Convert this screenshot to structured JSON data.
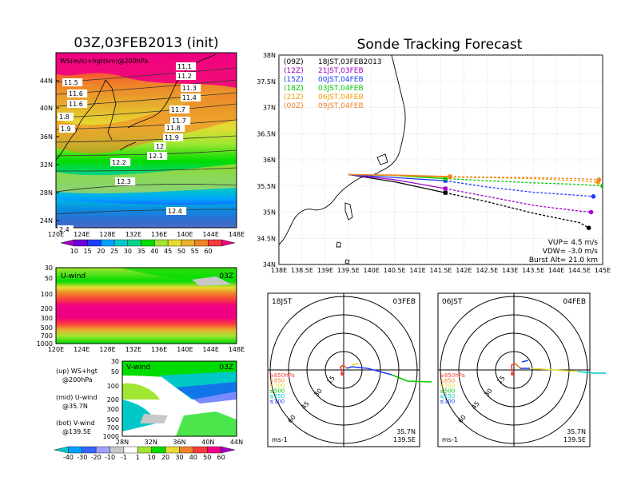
{
  "left_panel": {
    "title": "03Z,03FEB2013 (init)",
    "map_label": "WS(m/s)+hgt(km)@200hPa",
    "map_lat_labels": [
      "44N",
      "40N",
      "36N",
      "32N",
      "28N",
      "24N"
    ],
    "map_lon_labels": [
      "120E",
      "124E",
      "128E",
      "132E",
      "136E",
      "140E",
      "144E",
      "148E"
    ],
    "contour_labels": [
      "11.1",
      "11.2",
      "11.3",
      "11.4",
      "11.5",
      "11.6",
      "11.6",
      "11.7",
      "11.7",
      "11.8",
      "11.9",
      "12",
      "12.1",
      "12.2",
      "12.3",
      "12.4",
      "1.8",
      "1.9",
      "2.4"
    ],
    "ws_colorbar": [
      "10",
      "15",
      "20",
      "25",
      "30",
      "35",
      "40",
      "45",
      "50",
      "55",
      "60"
    ],
    "uwind": {
      "label": "U-wind",
      "time": "03Z",
      "levels": [
        "30",
        "50",
        "100",
        "200",
        "300",
        "500",
        "700",
        "1000"
      ],
      "lon_labels": [
        "120E",
        "124E",
        "128E",
        "132E",
        "136E",
        "140E",
        "144E",
        "148E"
      ]
    },
    "vwind": {
      "label": "V-wind",
      "time": "03Z",
      "levels": [
        "30",
        "50",
        "100",
        "200",
        "300",
        "500",
        "700",
        "1000"
      ],
      "lat_labels": [
        "28N",
        "32N",
        "36N",
        "40N",
        "44N"
      ]
    },
    "legend_text": [
      "(up) WS+hgt",
      "@200hPa",
      "(mid) U-wind",
      "@35.7N",
      "(bot) V-wind",
      "@139.5E"
    ],
    "wind_colorbar": [
      "-40",
      "-30",
      "-20",
      "-10",
      "-1",
      "1",
      "10",
      "20",
      "30",
      "40",
      "50",
      "60"
    ]
  },
  "colors": {
    "ws_scale": [
      "#a000c8",
      "#6e00dc",
      "#1e3cff",
      "#00a0ff",
      "#00c8c8",
      "#00d28c",
      "#00dc00",
      "#a0e632",
      "#e6dc32",
      "#e6af2d",
      "#f08228",
      "#fa3c3c",
      "#f00082"
    ],
    "wind_scale": [
      "#00c8c8",
      "#00a0ff",
      "#3c64ff",
      "#a0a0ff",
      "#c8c8c8",
      "#ffffff",
      "#a0e632",
      "#00dc00",
      "#e6dc32",
      "#f08228",
      "#fa3c3c",
      "#f00082"
    ],
    "track_09": "#000000",
    "track_21": "#a000c8",
    "track_00": "#1e3cff",
    "track_03": "#00c800",
    "track_06": "#f0a000",
    "track_09b": "#f08228"
  },
  "tracking": {
    "title": "Sonde Tracking Forecast",
    "legend": [
      {
        "utc": "(09Z)",
        "jst": "18JST,03FEB2013",
        "color": "#000000"
      },
      {
        "utc": "(12Z)",
        "jst": "21JST,03FEB",
        "color": "#a000c8"
      },
      {
        "utc": "(15Z)",
        "jst": "00JST,04FEB",
        "color": "#1e3cff"
      },
      {
        "utc": "(18Z)",
        "jst": "03JST,04FEB",
        "color": "#00c800"
      },
      {
        "utc": "(21Z)",
        "jst": "06JST,04FEB",
        "color": "#f0a000"
      },
      {
        "utc": "(00Z)",
        "jst": "09JST,04FEB",
        "color": "#f08228"
      }
    ],
    "params": [
      "VUP= 4.5 m/s",
      "VDW= -3.0 m/s",
      "Burst Alt= 21.0 km"
    ],
    "lat_labels": [
      "38N",
      "37.5N",
      "37N",
      "36.5N",
      "36N",
      "35.5N",
      "35N",
      "34.5N",
      "34N"
    ],
    "lon_labels": [
      "138E",
      "138.5E",
      "139E",
      "139.5E",
      "140E",
      "140.5E",
      "141E",
      "141.5E",
      "142E",
      "142.5E",
      "143E",
      "143.5E",
      "144E",
      "144.5E",
      "145E"
    ]
  },
  "chart_data": {
    "type": "line",
    "title": "Sonde Tracking Forecast",
    "xlim": [
      138,
      145
    ],
    "ylim": [
      34,
      38
    ],
    "series": [
      {
        "name": "18JST,03FEB2013",
        "solid_end": [
          141.6,
          35.37
        ],
        "x": [
          139.5,
          140.5,
          141.6,
          142.5,
          143.5,
          144.5,
          144.7
        ],
        "y": [
          35.72,
          35.58,
          35.37,
          35.2,
          34.98,
          34.8,
          34.7
        ]
      },
      {
        "name": "21JST,03FEB",
        "solid_end": [
          141.6,
          35.45
        ],
        "x": [
          139.5,
          140.5,
          141.6,
          142.5,
          143.5,
          144.5,
          144.75
        ],
        "y": [
          35.72,
          35.62,
          35.45,
          35.3,
          35.13,
          35.02,
          35.0
        ]
      },
      {
        "name": "00JST,04FEB",
        "solid_end": [
          141.6,
          35.6
        ],
        "x": [
          139.5,
          140.5,
          141.6,
          142.5,
          143.5,
          144.5,
          144.8
        ],
        "y": [
          35.72,
          35.66,
          35.6,
          35.48,
          35.38,
          35.32,
          35.3
        ]
      },
      {
        "name": "03JST,04FEB",
        "solid_end": [
          141.6,
          35.64
        ],
        "x": [
          139.5,
          140.5,
          141.6,
          142.5,
          143.5,
          144.5,
          145.0
        ],
        "y": [
          35.72,
          35.7,
          35.64,
          35.6,
          35.56,
          35.53,
          35.5
        ]
      },
      {
        "name": "06JST,04FEB",
        "solid_end": [
          141.7,
          35.67
        ],
        "x": [
          139.5,
          140.5,
          141.7,
          142.5,
          143.5,
          144.5,
          144.9
        ],
        "y": [
          35.72,
          35.7,
          35.67,
          35.66,
          35.64,
          35.6,
          35.57
        ]
      },
      {
        "name": "09JST,04FEB",
        "solid_end": [
          141.7,
          35.68
        ],
        "x": [
          139.5,
          140.5,
          141.7,
          142.5,
          143.5,
          144.5,
          144.92
        ],
        "y": [
          35.72,
          35.71,
          35.68,
          35.67,
          35.66,
          35.64,
          35.62
        ]
      }
    ]
  },
  "hodographs": [
    {
      "left": "18JST",
      "right": "03FEB",
      "levels": [
        "≥850hPa",
        "≤850",
        "≤700",
        "≤500",
        "≤250",
        "≤100"
      ],
      "ring_labels": [
        "15",
        "30",
        "45",
        "60"
      ],
      "unit": "ms-1",
      "lat": "35.7N",
      "lon": "139.5E"
    },
    {
      "left": "06JST",
      "right": "04FEB",
      "levels": [
        "≥850hPa",
        "≤850",
        "≤700",
        "≤500",
        "≤250",
        "≤100"
      ],
      "ring_labels": [
        "15",
        "30",
        "45",
        "60"
      ],
      "unit": "ms-1",
      "lat": "35.7N",
      "lon": "139.5E"
    }
  ]
}
